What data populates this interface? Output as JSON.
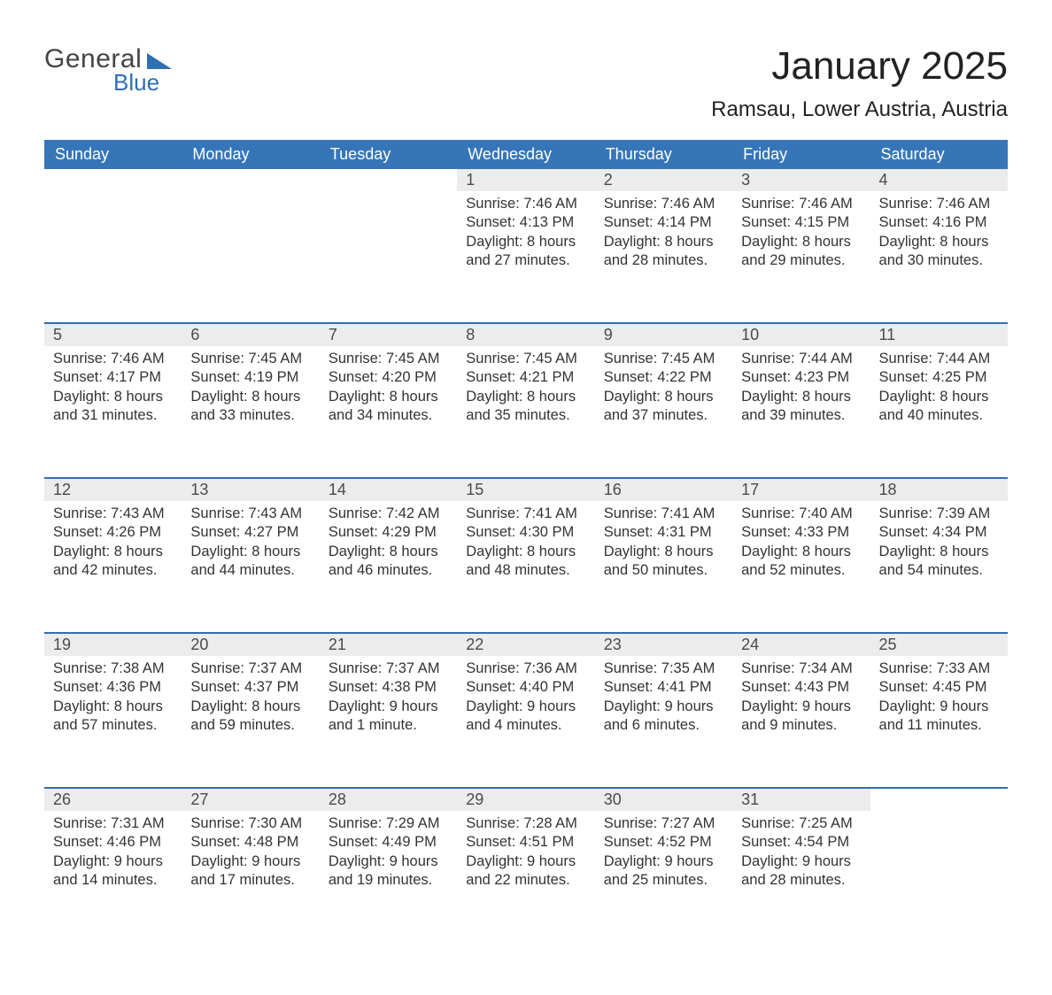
{
  "brand": {
    "general": "General",
    "blue": "Blue",
    "text_color": "#444444",
    "accent_color": "#2f6fb3"
  },
  "header": {
    "month_title": "January 2025",
    "location": "Ramsau, Lower Austria, Austria",
    "title_fontsize": 44,
    "location_fontsize": 24
  },
  "calendar": {
    "type": "table",
    "header_bg": "#3676b8",
    "header_text_color": "#ffffff",
    "daynum_bg": "#ececec",
    "week_divider_color": "#2f6fb3",
    "body_text_color": "#333333",
    "body_fontsize": 16.5,
    "columns": [
      "Sunday",
      "Monday",
      "Tuesday",
      "Wednesday",
      "Thursday",
      "Friday",
      "Saturday"
    ],
    "weeks": [
      [
        null,
        null,
        null,
        {
          "day": "1",
          "sunrise": "Sunrise: 7:46 AM",
          "sunset": "Sunset: 4:13 PM",
          "d1": "Daylight: 8 hours",
          "d2": "and 27 minutes."
        },
        {
          "day": "2",
          "sunrise": "Sunrise: 7:46 AM",
          "sunset": "Sunset: 4:14 PM",
          "d1": "Daylight: 8 hours",
          "d2": "and 28 minutes."
        },
        {
          "day": "3",
          "sunrise": "Sunrise: 7:46 AM",
          "sunset": "Sunset: 4:15 PM",
          "d1": "Daylight: 8 hours",
          "d2": "and 29 minutes."
        },
        {
          "day": "4",
          "sunrise": "Sunrise: 7:46 AM",
          "sunset": "Sunset: 4:16 PM",
          "d1": "Daylight: 8 hours",
          "d2": "and 30 minutes."
        }
      ],
      [
        {
          "day": "5",
          "sunrise": "Sunrise: 7:46 AM",
          "sunset": "Sunset: 4:17 PM",
          "d1": "Daylight: 8 hours",
          "d2": "and 31 minutes."
        },
        {
          "day": "6",
          "sunrise": "Sunrise: 7:45 AM",
          "sunset": "Sunset: 4:19 PM",
          "d1": "Daylight: 8 hours",
          "d2": "and 33 minutes."
        },
        {
          "day": "7",
          "sunrise": "Sunrise: 7:45 AM",
          "sunset": "Sunset: 4:20 PM",
          "d1": "Daylight: 8 hours",
          "d2": "and 34 minutes."
        },
        {
          "day": "8",
          "sunrise": "Sunrise: 7:45 AM",
          "sunset": "Sunset: 4:21 PM",
          "d1": "Daylight: 8 hours",
          "d2": "and 35 minutes."
        },
        {
          "day": "9",
          "sunrise": "Sunrise: 7:45 AM",
          "sunset": "Sunset: 4:22 PM",
          "d1": "Daylight: 8 hours",
          "d2": "and 37 minutes."
        },
        {
          "day": "10",
          "sunrise": "Sunrise: 7:44 AM",
          "sunset": "Sunset: 4:23 PM",
          "d1": "Daylight: 8 hours",
          "d2": "and 39 minutes."
        },
        {
          "day": "11",
          "sunrise": "Sunrise: 7:44 AM",
          "sunset": "Sunset: 4:25 PM",
          "d1": "Daylight: 8 hours",
          "d2": "and 40 minutes."
        }
      ],
      [
        {
          "day": "12",
          "sunrise": "Sunrise: 7:43 AM",
          "sunset": "Sunset: 4:26 PM",
          "d1": "Daylight: 8 hours",
          "d2": "and 42 minutes."
        },
        {
          "day": "13",
          "sunrise": "Sunrise: 7:43 AM",
          "sunset": "Sunset: 4:27 PM",
          "d1": "Daylight: 8 hours",
          "d2": "and 44 minutes."
        },
        {
          "day": "14",
          "sunrise": "Sunrise: 7:42 AM",
          "sunset": "Sunset: 4:29 PM",
          "d1": "Daylight: 8 hours",
          "d2": "and 46 minutes."
        },
        {
          "day": "15",
          "sunrise": "Sunrise: 7:41 AM",
          "sunset": "Sunset: 4:30 PM",
          "d1": "Daylight: 8 hours",
          "d2": "and 48 minutes."
        },
        {
          "day": "16",
          "sunrise": "Sunrise: 7:41 AM",
          "sunset": "Sunset: 4:31 PM",
          "d1": "Daylight: 8 hours",
          "d2": "and 50 minutes."
        },
        {
          "day": "17",
          "sunrise": "Sunrise: 7:40 AM",
          "sunset": "Sunset: 4:33 PM",
          "d1": "Daylight: 8 hours",
          "d2": "and 52 minutes."
        },
        {
          "day": "18",
          "sunrise": "Sunrise: 7:39 AM",
          "sunset": "Sunset: 4:34 PM",
          "d1": "Daylight: 8 hours",
          "d2": "and 54 minutes."
        }
      ],
      [
        {
          "day": "19",
          "sunrise": "Sunrise: 7:38 AM",
          "sunset": "Sunset: 4:36 PM",
          "d1": "Daylight: 8 hours",
          "d2": "and 57 minutes."
        },
        {
          "day": "20",
          "sunrise": "Sunrise: 7:37 AM",
          "sunset": "Sunset: 4:37 PM",
          "d1": "Daylight: 8 hours",
          "d2": "and 59 minutes."
        },
        {
          "day": "21",
          "sunrise": "Sunrise: 7:37 AM",
          "sunset": "Sunset: 4:38 PM",
          "d1": "Daylight: 9 hours",
          "d2": "and 1 minute."
        },
        {
          "day": "22",
          "sunrise": "Sunrise: 7:36 AM",
          "sunset": "Sunset: 4:40 PM",
          "d1": "Daylight: 9 hours",
          "d2": "and 4 minutes."
        },
        {
          "day": "23",
          "sunrise": "Sunrise: 7:35 AM",
          "sunset": "Sunset: 4:41 PM",
          "d1": "Daylight: 9 hours",
          "d2": "and 6 minutes."
        },
        {
          "day": "24",
          "sunrise": "Sunrise: 7:34 AM",
          "sunset": "Sunset: 4:43 PM",
          "d1": "Daylight: 9 hours",
          "d2": "and 9 minutes."
        },
        {
          "day": "25",
          "sunrise": "Sunrise: 7:33 AM",
          "sunset": "Sunset: 4:45 PM",
          "d1": "Daylight: 9 hours",
          "d2": "and 11 minutes."
        }
      ],
      [
        {
          "day": "26",
          "sunrise": "Sunrise: 7:31 AM",
          "sunset": "Sunset: 4:46 PM",
          "d1": "Daylight: 9 hours",
          "d2": "and 14 minutes."
        },
        {
          "day": "27",
          "sunrise": "Sunrise: 7:30 AM",
          "sunset": "Sunset: 4:48 PM",
          "d1": "Daylight: 9 hours",
          "d2": "and 17 minutes."
        },
        {
          "day": "28",
          "sunrise": "Sunrise: 7:29 AM",
          "sunset": "Sunset: 4:49 PM",
          "d1": "Daylight: 9 hours",
          "d2": "and 19 minutes."
        },
        {
          "day": "29",
          "sunrise": "Sunrise: 7:28 AM",
          "sunset": "Sunset: 4:51 PM",
          "d1": "Daylight: 9 hours",
          "d2": "and 22 minutes."
        },
        {
          "day": "30",
          "sunrise": "Sunrise: 7:27 AM",
          "sunset": "Sunset: 4:52 PM",
          "d1": "Daylight: 9 hours",
          "d2": "and 25 minutes."
        },
        {
          "day": "31",
          "sunrise": "Sunrise: 7:25 AM",
          "sunset": "Sunset: 4:54 PM",
          "d1": "Daylight: 9 hours",
          "d2": "and 28 minutes."
        },
        null
      ]
    ]
  }
}
